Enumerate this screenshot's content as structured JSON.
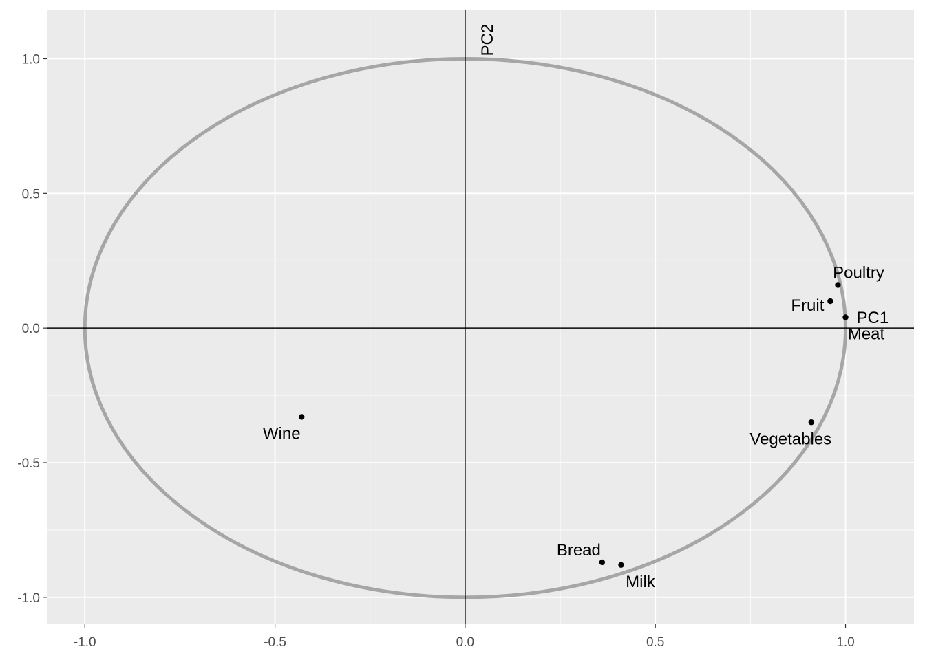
{
  "chart_data": {
    "type": "scatter",
    "title": "",
    "xlabel": "",
    "ylabel": "",
    "xlim": [
      -1.1,
      1.18
    ],
    "ylim": [
      -1.1,
      1.18
    ],
    "x_major_ticks": [
      -1.0,
      -0.5,
      0.0,
      0.5,
      1.0
    ],
    "y_major_ticks": [
      -1.0,
      -0.5,
      0.0,
      0.5,
      1.0
    ],
    "x_tick_labels": [
      "-1.0",
      "-0.5",
      "0.0",
      "0.5",
      "1.0"
    ],
    "y_tick_labels": [
      "-1.0",
      "-0.5",
      "0.0",
      "0.5",
      "1.0"
    ],
    "grid": true,
    "legend": "none",
    "circle_radius": 1.0,
    "reference_lines": {
      "x": 0,
      "y": 0
    },
    "axis_names": [
      {
        "text": "PC1",
        "x": 1.0,
        "y": 0.0
      },
      {
        "text": "PC2",
        "x": 0.0,
        "y": 1.0
      }
    ],
    "points": [
      {
        "label": "Poultry",
        "x": 0.98,
        "y": 0.16
      },
      {
        "label": "Fruit",
        "x": 0.96,
        "y": 0.1
      },
      {
        "label": "Meat",
        "x": 1.0,
        "y": 0.04
      },
      {
        "label": "Vegetables",
        "x": 0.91,
        "y": -0.35
      },
      {
        "label": "Wine",
        "x": -0.43,
        "y": -0.33
      },
      {
        "label": "Bread",
        "x": 0.36,
        "y": -0.87
      },
      {
        "label": "Milk",
        "x": 0.41,
        "y": -0.88
      }
    ],
    "colors": {
      "panel": "#ebebeb",
      "grid": "#ffffff",
      "circle": "#a6a6a6",
      "points": "#000000",
      "reference_lines": "#000000"
    }
  }
}
